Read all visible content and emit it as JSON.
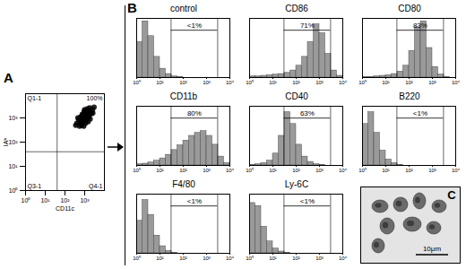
{
  "chart_data": [
    {
      "type": "scatter",
      "panel": "A",
      "x_label": "CD11c",
      "y_label": "IAᵇ",
      "x": [
        400,
        800,
        1200,
        600,
        900,
        1500,
        700,
        1100,
        2000,
        500,
        1300,
        900,
        1700,
        650,
        1000,
        1400,
        800,
        2500,
        550,
        1200,
        950,
        1800,
        700,
        1600,
        1100,
        450,
        2200,
        850,
        1300,
        3000,
        600,
        1000,
        1900,
        750,
        1250,
        350,
        2600,
        1500,
        900,
        1700
      ],
      "y": [
        600,
        900,
        1500,
        1100,
        700,
        2000,
        500,
        1200,
        1800,
        800,
        900,
        1600,
        1300,
        700,
        1000,
        2400,
        1300,
        2200,
        450,
        800,
        1900,
        2600,
        900,
        1100,
        600,
        1000,
        1500,
        1150,
        1700,
        2800,
        600,
        2200,
        900,
        1400,
        1250,
        500,
        1600,
        700,
        450,
        2000
      ],
      "xlim": [
        1,
        10000
      ],
      "ylim": [
        1,
        10000
      ],
      "xticks": [
        {
          "value": 1,
          "label": "10⁰"
        },
        {
          "value": 10,
          "label": "10¹"
        },
        {
          "value": 100,
          "label": "10²"
        },
        {
          "value": 1000,
          "label": "10³"
        }
      ],
      "yticks": [
        {
          "value": 1,
          "label": "10⁰"
        },
        {
          "value": 10,
          "label": "10¹"
        },
        {
          "value": 100,
          "label": "10²"
        },
        {
          "value": 1000,
          "label": "10³"
        }
      ],
      "log": true,
      "quadrant": [
        40,
        40
      ],
      "quadrant_labels": {
        "top_left": "Q1-1",
        "top_right": "100%",
        "bottom_left": "Q3-1",
        "bottom_right": "Q4-1"
      },
      "color": "#000000"
    },
    {
      "type": "histogram",
      "panel": "B",
      "title": "control",
      "bins": [
        1,
        1.78,
        3.16,
        5.62,
        10,
        17.8,
        31.6,
        56.2,
        100,
        178,
        316,
        562,
        1000,
        1780,
        3160,
        5620,
        10000
      ],
      "counts": [
        60,
        95,
        70,
        35,
        15,
        6,
        2,
        1,
        0,
        0,
        0,
        0,
        0,
        0,
        0,
        0
      ],
      "xlim": [
        1,
        10000
      ],
      "xticks": [
        {
          "value": 1,
          "label": "10⁰"
        },
        {
          "value": 10,
          "label": "10¹"
        },
        {
          "value": 100,
          "label": "10²"
        },
        {
          "value": 1000,
          "label": "10³"
        },
        {
          "value": 10000,
          "label": "10⁴"
        }
      ],
      "ylim": [
        0,
        100
      ],
      "log": "x",
      "tick_labels": "x",
      "gate": [
        30,
        3000
      ],
      "gate_label": "<1%",
      "color": "#9a9a9a"
    },
    {
      "type": "histogram",
      "title": "CD86",
      "bins": [
        1,
        1.78,
        3.16,
        5.62,
        10,
        17.8,
        31.6,
        56.2,
        100,
        178,
        316,
        562,
        1000,
        1780,
        3160,
        5620,
        10000
      ],
      "counts": [
        2,
        2,
        3,
        4,
        5,
        6,
        8,
        12,
        20,
        35,
        60,
        90,
        75,
        40,
        12,
        3
      ],
      "xlim": [
        1,
        10000
      ],
      "xticks": [
        {
          "value": 1,
          "label": "10⁰"
        },
        {
          "value": 10,
          "label": "10¹"
        },
        {
          "value": 100,
          "label": "10²"
        },
        {
          "value": 1000,
          "label": "10³"
        },
        {
          "value": 10000,
          "label": "10⁴"
        }
      ],
      "ylim": [
        0,
        100
      ],
      "log": "x",
      "tick_labels": "x",
      "gate": [
        30,
        3000
      ],
      "gate_label": "71%",
      "color": "#9a9a9a"
    },
    {
      "type": "histogram",
      "title": "CD80",
      "bins": [
        1,
        1.78,
        3.16,
        5.62,
        10,
        17.8,
        31.6,
        56.2,
        100,
        178,
        316,
        562,
        1000,
        1780,
        3160,
        5620,
        10000
      ],
      "counts": [
        1,
        1,
        2,
        3,
        4,
        6,
        10,
        20,
        45,
        85,
        95,
        50,
        18,
        5,
        1,
        0
      ],
      "xlim": [
        1,
        10000
      ],
      "xticks": [
        {
          "value": 1,
          "label": "10⁰"
        },
        {
          "value": 10,
          "label": "10¹"
        },
        {
          "value": 100,
          "label": "10²"
        },
        {
          "value": 1000,
          "label": "10³"
        },
        {
          "value": 10000,
          "label": "10⁴"
        }
      ],
      "ylim": [
        0,
        100
      ],
      "log": "x",
      "tick_labels": "x",
      "gate": [
        30,
        3000
      ],
      "gate_label": "83%",
      "color": "#9a9a9a"
    },
    {
      "type": "histogram",
      "title": "CD11b",
      "bins": [
        1,
        1.78,
        3.16,
        5.62,
        10,
        17.8,
        31.6,
        56.2,
        100,
        178,
        316,
        562,
        1000,
        1780,
        3160,
        5620,
        10000
      ],
      "counts": [
        2,
        3,
        5,
        8,
        12,
        18,
        26,
        34,
        42,
        50,
        55,
        58,
        50,
        35,
        15,
        4
      ],
      "xlim": [
        1,
        10000
      ],
      "xticks": [
        {
          "value": 1,
          "label": "10⁰"
        },
        {
          "value": 10,
          "label": "10¹"
        },
        {
          "value": 100,
          "label": "10²"
        },
        {
          "value": 1000,
          "label": "10³"
        },
        {
          "value": 10000,
          "label": "10⁴"
        }
      ],
      "ylim": [
        0,
        100
      ],
      "log": "x",
      "tick_labels": "x",
      "gate": [
        30,
        3000
      ],
      "gate_label": "80%",
      "color": "#9a9a9a"
    },
    {
      "type": "histogram",
      "title": "CD40",
      "bins": [
        1,
        1.78,
        3.16,
        5.62,
        10,
        17.8,
        31.6,
        56.2,
        100,
        178,
        316,
        562,
        1000,
        1780,
        3160,
        5620,
        10000
      ],
      "counts": [
        1,
        2,
        4,
        8,
        20,
        50,
        90,
        70,
        35,
        15,
        6,
        2,
        1,
        0,
        0,
        0
      ],
      "xlim": [
        1,
        10000
      ],
      "xticks": [
        {
          "value": 1,
          "label": "10⁰"
        },
        {
          "value": 10,
          "label": "10¹"
        },
        {
          "value": 100,
          "label": "10²"
        },
        {
          "value": 1000,
          "label": "10³"
        },
        {
          "value": 10000,
          "label": "10⁴"
        }
      ],
      "ylim": [
        0,
        100
      ],
      "log": "x",
      "tick_labels": "x",
      "gate": [
        30,
        3000
      ],
      "gate_label": "63%",
      "color": "#9a9a9a"
    },
    {
      "type": "histogram",
      "title": "B220",
      "bins": [
        1,
        1.78,
        3.16,
        5.62,
        10,
        17.8,
        31.6,
        56.2,
        100,
        178,
        316,
        562,
        1000,
        1780,
        3160,
        5620,
        10000
      ],
      "counts": [
        70,
        90,
        55,
        25,
        10,
        4,
        1,
        0,
        0,
        0,
        0,
        0,
        0,
        0,
        0,
        0
      ],
      "xlim": [
        1,
        10000
      ],
      "xticks": [
        {
          "value": 1,
          "label": "10⁰"
        },
        {
          "value": 10,
          "label": "10¹"
        },
        {
          "value": 100,
          "label": "10²"
        },
        {
          "value": 1000,
          "label": "10³"
        },
        {
          "value": 10000,
          "label": "10⁴"
        }
      ],
      "ylim": [
        0,
        100
      ],
      "log": "x",
      "tick_labels": "x",
      "gate": [
        30,
        3000
      ],
      "gate_label": "<1%",
      "color": "#9a9a9a"
    },
    {
      "type": "histogram",
      "title": "F4/80",
      "bins": [
        1,
        1.78,
        3.16,
        5.62,
        10,
        17.8,
        31.6,
        56.2,
        100,
        178,
        316,
        562,
        1000,
        1780,
        3160,
        5620,
        10000
      ],
      "counts": [
        55,
        90,
        65,
        30,
        12,
        4,
        1,
        0,
        0,
        0,
        0,
        0,
        0,
        0,
        0,
        0
      ],
      "xlim": [
        1,
        10000
      ],
      "xticks": [
        {
          "value": 1,
          "label": "10⁰"
        },
        {
          "value": 10,
          "label": "10¹"
        },
        {
          "value": 100,
          "label": "10²"
        },
        {
          "value": 1000,
          "label": "10³"
        },
        {
          "value": 10000,
          "label": "10⁴"
        }
      ],
      "ylim": [
        0,
        100
      ],
      "log": "x",
      "tick_labels": "x",
      "gate": [
        30,
        3000
      ],
      "gate_label": "<1%",
      "color": "#9a9a9a"
    },
    {
      "type": "histogram",
      "title": "Ly-6C",
      "bins": [
        1,
        1.78,
        3.16,
        5.62,
        10,
        17.8,
        31.6,
        56.2,
        100,
        178,
        316,
        562,
        1000,
        1780,
        3160,
        5620,
        10000
      ],
      "counts": [
        85,
        80,
        45,
        20,
        8,
        3,
        1,
        0,
        0,
        0,
        0,
        0,
        0,
        0,
        0,
        0
      ],
      "xlim": [
        1,
        10000
      ],
      "xticks": [
        {
          "value": 1,
          "label": "10⁰"
        },
        {
          "value": 10,
          "label": "10¹"
        },
        {
          "value": 100,
          "label": "10²"
        },
        {
          "value": 1000,
          "label": "10³"
        },
        {
          "value": 10000,
          "label": "10⁴"
        }
      ],
      "ylim": [
        0,
        100
      ],
      "log": "x",
      "tick_labels": "x",
      "gate": [
        30,
        3000
      ],
      "gate_label": "<1%",
      "color": "#9a9a9a"
    }
  ],
  "image_panel": {
    "panel": "C",
    "scale_bar": "10μm"
  }
}
